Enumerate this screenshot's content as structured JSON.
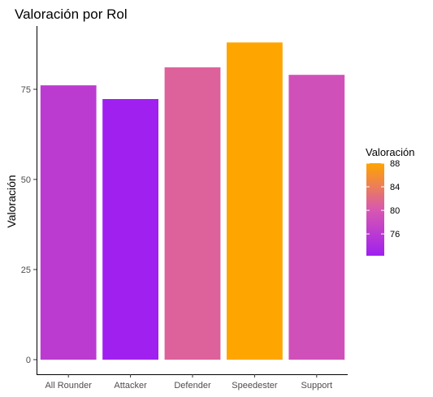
{
  "chart_data": {
    "type": "bar",
    "title": "Valoración por Rol",
    "xlabel": "",
    "ylabel": "Valoración",
    "categories": [
      "All Rounder",
      "Attacker",
      "Defender",
      "Speedester",
      "Support"
    ],
    "values": [
      76.1,
      72.3,
      81.1,
      88.0,
      79.0
    ],
    "ylim": [
      0,
      88
    ],
    "yticks": [
      0,
      25,
      50,
      75
    ],
    "grid": false,
    "legend": {
      "title": "Valoración",
      "position": "right",
      "ticks": [
        76,
        80,
        84,
        88
      ],
      "range": [
        72.3,
        88.0
      ]
    },
    "colors": {
      "low": "#a020f0",
      "high": "#ffa500"
    }
  }
}
